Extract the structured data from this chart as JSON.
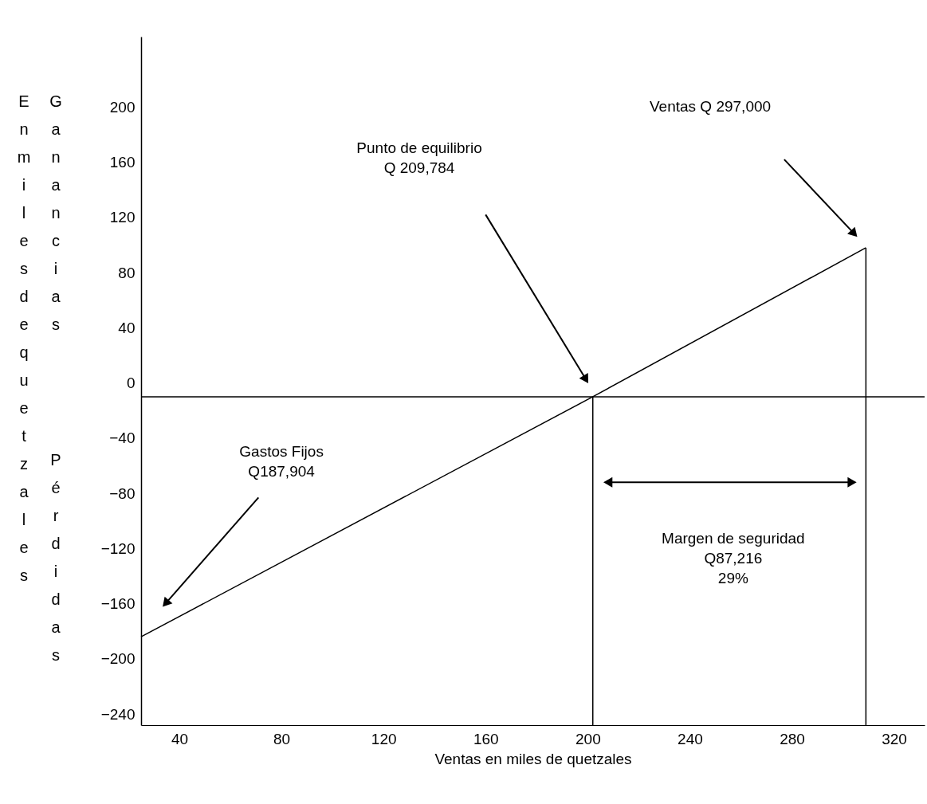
{
  "chart_data": {
    "type": "line",
    "xlabel": "Ventas en miles de quetzales",
    "ylabel": "En miles de quetzales",
    "x": [
      25,
      202,
      309
    ],
    "series": [
      {
        "color": "#000000",
        "values": [
          -184,
          -10,
          98
        ]
      }
    ],
    "xlim": [
      25,
      332
    ],
    "xticks": [
      40,
      80,
      120,
      160,
      200,
      240,
      280,
      320
    ],
    "ylim": [
      -248,
      251
    ],
    "yticks": [
      -240,
      -200,
      -160,
      -120,
      -80,
      -40,
      0,
      40,
      80,
      120,
      160,
      200
    ],
    "grid": false,
    "legend": false,
    "marker": "none",
    "line_style": "solid",
    "ref_lines": [
      {
        "axis": "y",
        "value": -10,
        "color": "#000000"
      },
      {
        "axis": "x",
        "value": 202,
        "color": "#000000"
      },
      {
        "axis": "x",
        "value": 309,
        "color": "#000000"
      }
    ],
    "annotations": [
      "Ganancias",
      "Pérdidas",
      "Punto de equilibrio\nQ 209,784",
      "Ventas  Q  297,000",
      "Gastos Fijos\nQ187,904",
      "Margen de seguridad\nQ87,216\n29%"
    ]
  }
}
